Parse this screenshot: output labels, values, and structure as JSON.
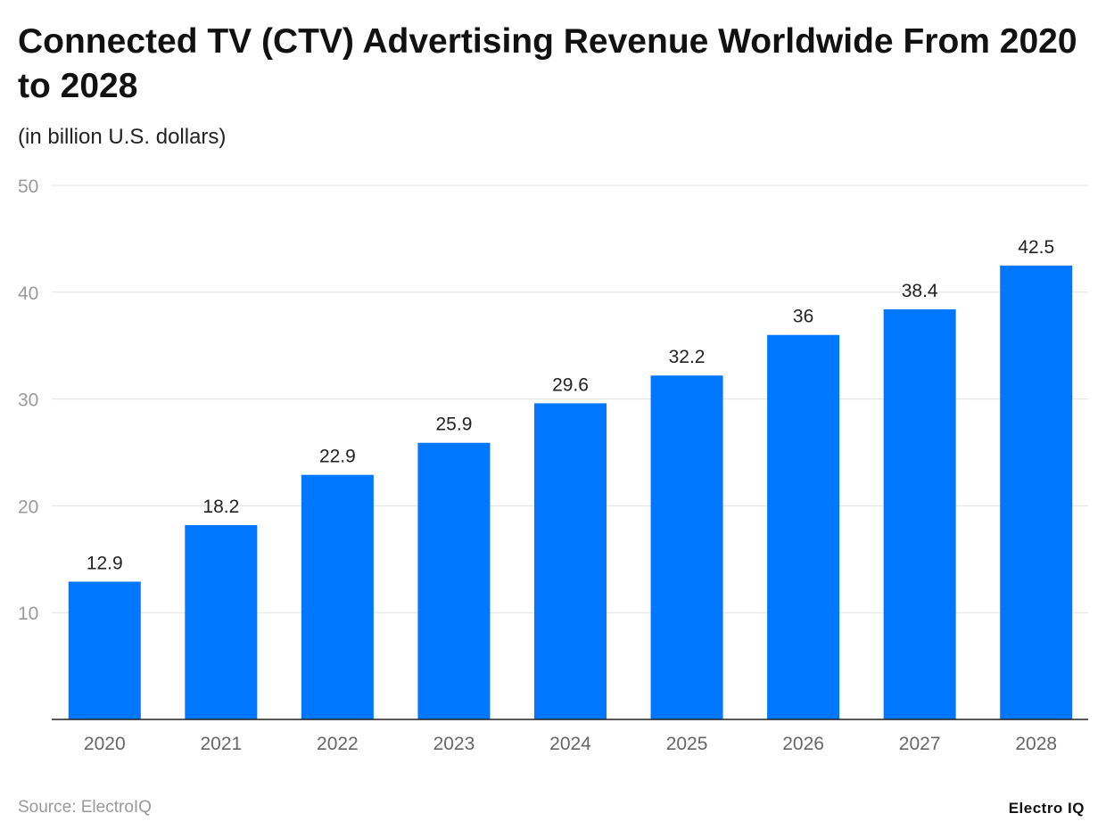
{
  "chart_data": {
    "type": "bar",
    "title": "Connected TV (CTV) Advertising Revenue Worldwide From 2020 to 2028",
    "subtitle": "(in billion U.S. dollars)",
    "categories": [
      "2020",
      "2021",
      "2022",
      "2023",
      "2024",
      "2025",
      "2026",
      "2027",
      "2028"
    ],
    "values": [
      12.9,
      18.2,
      22.9,
      25.9,
      29.6,
      32.2,
      36,
      38.4,
      42.5
    ],
    "value_labels": [
      "12.9",
      "18.2",
      "22.9",
      "25.9",
      "29.6",
      "32.2",
      "36",
      "38.4",
      "42.5"
    ],
    "xlabel": "",
    "ylabel": "",
    "ylim": [
      0,
      50
    ],
    "yticks": [
      10,
      20,
      30,
      40,
      50
    ],
    "grid": true,
    "bar_color": "#0077ff"
  },
  "footer": {
    "source": "Source: ElectroIQ",
    "logo": "Electro IQ"
  }
}
